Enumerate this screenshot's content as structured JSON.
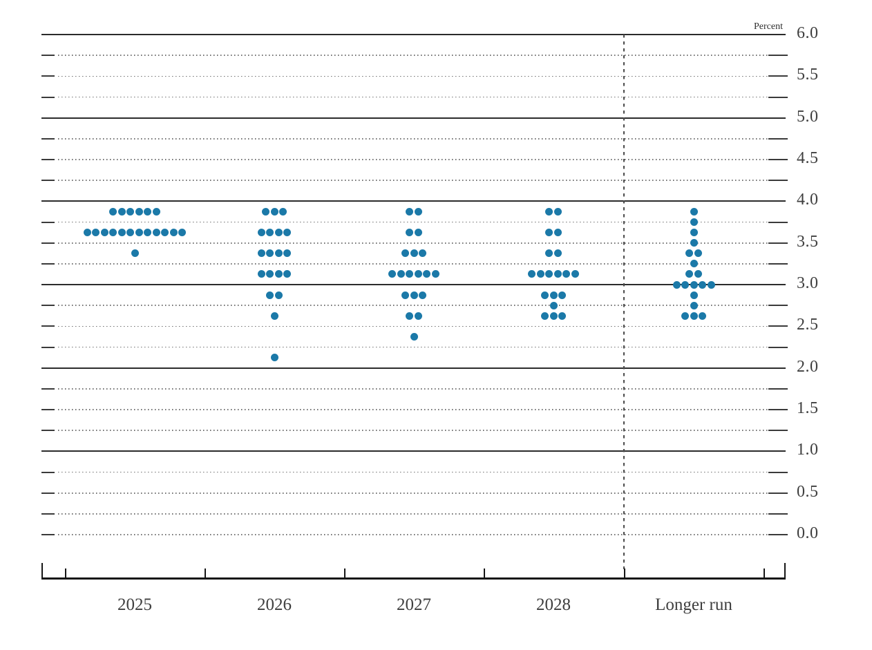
{
  "chart_data": {
    "type": "scatter",
    "chart_kind": "fomc-dot-plot",
    "title": "",
    "unit_label": "Percent",
    "xlabel": "",
    "ylabel": "",
    "ylim": [
      0.0,
      6.0
    ],
    "y_major_step": 0.5,
    "y_minor_step": 0.25,
    "y_tick_labels": [
      "6.0",
      "5.5",
      "5.0",
      "4.5",
      "4.0",
      "3.5",
      "3.0",
      "2.5",
      "2.0",
      "1.5",
      "1.0",
      "0.5",
      "0.0"
    ],
    "solid_gridline_values": [
      6.0,
      5.0,
      4.0,
      3.0,
      2.0,
      1.0
    ],
    "grid": "dotted-quarter-percent",
    "legend": "none",
    "dot_color": "#1b79a8",
    "separator_after_category": "2028",
    "categories": [
      "2025",
      "2026",
      "2027",
      "2028",
      "Longer run"
    ],
    "columns": [
      {
        "label": "2025",
        "dots": [
          {
            "value": 3.875,
            "count": 6
          },
          {
            "value": 3.625,
            "count": 12
          },
          {
            "value": 3.375,
            "count": 1
          }
        ]
      },
      {
        "label": "2026",
        "dots": [
          {
            "value": 3.875,
            "count": 3
          },
          {
            "value": 3.625,
            "count": 4
          },
          {
            "value": 3.375,
            "count": 4
          },
          {
            "value": 3.125,
            "count": 4
          },
          {
            "value": 2.875,
            "count": 2
          },
          {
            "value": 2.625,
            "count": 1
          },
          {
            "value": 2.125,
            "count": 1
          }
        ]
      },
      {
        "label": "2027",
        "dots": [
          {
            "value": 3.875,
            "count": 2
          },
          {
            "value": 3.625,
            "count": 2
          },
          {
            "value": 3.375,
            "count": 3
          },
          {
            "value": 3.125,
            "count": 6
          },
          {
            "value": 2.875,
            "count": 3
          },
          {
            "value": 2.625,
            "count": 2
          },
          {
            "value": 2.375,
            "count": 1
          }
        ]
      },
      {
        "label": "2028",
        "dots": [
          {
            "value": 3.875,
            "count": 2
          },
          {
            "value": 3.625,
            "count": 2
          },
          {
            "value": 3.375,
            "count": 2
          },
          {
            "value": 3.125,
            "count": 6
          },
          {
            "value": 2.875,
            "count": 3
          },
          {
            "value": 2.75,
            "count": 1
          },
          {
            "value": 2.625,
            "count": 3
          }
        ]
      },
      {
        "label": "Longer run",
        "dots": [
          {
            "value": 3.875,
            "count": 1
          },
          {
            "value": 3.75,
            "count": 1
          },
          {
            "value": 3.625,
            "count": 1
          },
          {
            "value": 3.5,
            "count": 1
          },
          {
            "value": 3.375,
            "count": 2
          },
          {
            "value": 3.25,
            "count": 1
          },
          {
            "value": 3.125,
            "count": 2
          },
          {
            "value": 3.0,
            "count": 5
          },
          {
            "value": 2.875,
            "count": 1
          },
          {
            "value": 2.75,
            "count": 1
          },
          {
            "value": 2.625,
            "count": 3
          }
        ]
      }
    ]
  }
}
